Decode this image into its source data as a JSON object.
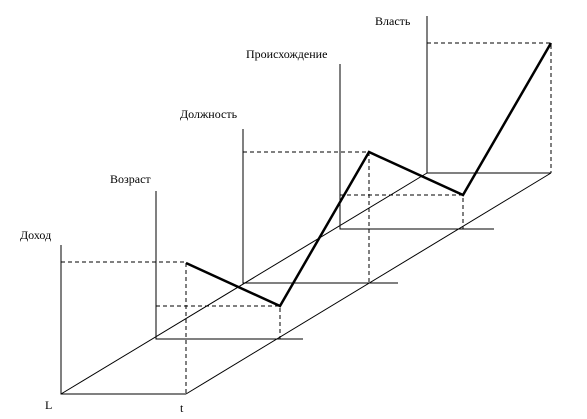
{
  "axes": [
    {
      "label": "Доход"
    },
    {
      "label": "Возраст"
    },
    {
      "label": "Должность"
    },
    {
      "label": "Происхождение"
    },
    {
      "label": "Власть"
    }
  ],
  "origin_label": "L",
  "time_label": "t"
}
